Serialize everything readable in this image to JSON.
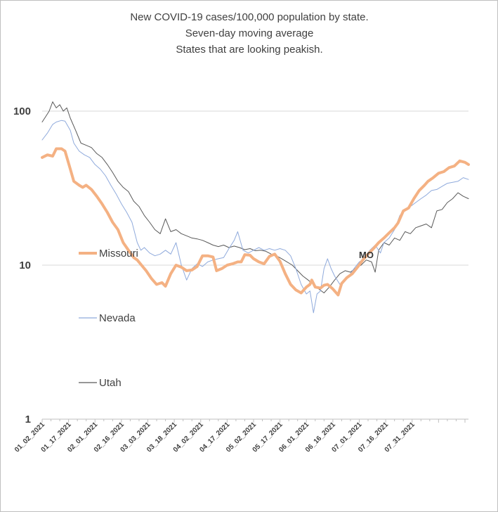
{
  "chart_data": {
    "type": "line",
    "title_lines": [
      "New COVID-19 cases/100,000 population by state.",
      "Seven-day moving average",
      "States that are looking peakish."
    ],
    "y_scale": "log",
    "ylim": [
      1,
      100
    ],
    "y_ticks": [
      "1",
      "10",
      "100"
    ],
    "grid": true,
    "x_tick_labels": [
      "01_02_2021",
      "01_17_2021",
      "02_01_2021",
      "02_16_2021",
      "03_03_2021",
      "03_18_2021",
      "04_02_2021",
      "04_17_2021",
      "05_02_2021",
      "05_17_2021",
      "06_01_2021",
      "06_16_2021",
      "07_01_2021",
      "07_16_2021",
      "07_31_2021"
    ],
    "x_start": "2021-01-02",
    "x_end": "2021-08-11",
    "annotation": "MO",
    "legend_position": "left-inside",
    "series": [
      {
        "name": "Missouri",
        "color": "#f4b183",
        "stroke": 4,
        "points": [
          [
            "2021-01-02",
            50
          ],
          [
            "2021-01-05",
            52
          ],
          [
            "2021-01-08",
            51
          ],
          [
            "2021-01-10",
            57
          ],
          [
            "2021-01-13",
            57
          ],
          [
            "2021-01-15",
            55
          ],
          [
            "2021-01-18",
            42
          ],
          [
            "2021-01-20",
            35
          ],
          [
            "2021-01-23",
            33
          ],
          [
            "2021-01-25",
            32
          ],
          [
            "2021-01-27",
            33
          ],
          [
            "2021-01-30",
            31
          ],
          [
            "2021-02-02",
            28
          ],
          [
            "2021-02-05",
            25
          ],
          [
            "2021-02-08",
            22
          ],
          [
            "2021-02-11",
            19
          ],
          [
            "2021-02-14",
            17
          ],
          [
            "2021-02-17",
            14
          ],
          [
            "2021-02-20",
            12.5
          ],
          [
            "2021-02-23",
            11.2
          ],
          [
            "2021-02-25",
            10.8
          ],
          [
            "2021-02-28",
            9.8
          ],
          [
            "2021-03-02",
            9.2
          ],
          [
            "2021-03-05",
            8.2
          ],
          [
            "2021-03-08",
            7.5
          ],
          [
            "2021-03-11",
            7.7
          ],
          [
            "2021-03-13",
            7.3
          ],
          [
            "2021-03-16",
            8.8
          ],
          [
            "2021-03-19",
            10.0
          ],
          [
            "2021-03-22",
            9.7
          ],
          [
            "2021-03-25",
            9.2
          ],
          [
            "2021-03-28",
            9.3
          ],
          [
            "2021-03-31",
            9.8
          ],
          [
            "2021-04-03",
            11.5
          ],
          [
            "2021-04-06",
            11.5
          ],
          [
            "2021-04-09",
            11.3
          ],
          [
            "2021-04-11",
            9.2
          ],
          [
            "2021-04-14",
            9.5
          ],
          [
            "2021-04-17",
            10.0
          ],
          [
            "2021-04-20",
            10.2
          ],
          [
            "2021-04-23",
            10.5
          ],
          [
            "2021-04-25",
            10.5
          ],
          [
            "2021-04-27",
            11.7
          ],
          [
            "2021-04-30",
            11.6
          ],
          [
            "2021-05-02",
            11.0
          ],
          [
            "2021-05-05",
            10.5
          ],
          [
            "2021-05-08",
            10.2
          ],
          [
            "2021-05-11",
            11.4
          ],
          [
            "2021-05-14",
            11.8
          ],
          [
            "2021-05-17",
            10.6
          ],
          [
            "2021-05-20",
            8.8
          ],
          [
            "2021-05-23",
            7.5
          ],
          [
            "2021-05-26",
            6.9
          ],
          [
            "2021-05-29",
            6.6
          ],
          [
            "2021-06-01",
            7.2
          ],
          [
            "2021-06-03",
            7.5
          ],
          [
            "2021-06-04",
            8.0
          ],
          [
            "2021-06-06",
            7.2
          ],
          [
            "2021-06-09",
            7.1
          ],
          [
            "2021-06-11",
            7.4
          ],
          [
            "2021-06-13",
            7.5
          ],
          [
            "2021-06-16",
            7.0
          ],
          [
            "2021-06-19",
            6.4
          ],
          [
            "2021-06-21",
            7.6
          ],
          [
            "2021-06-24",
            8.3
          ],
          [
            "2021-06-27",
            8.8
          ],
          [
            "2021-06-30",
            9.7
          ],
          [
            "2021-07-03",
            10.8
          ],
          [
            "2021-07-06",
            11.8
          ],
          [
            "2021-07-09",
            12.8
          ],
          [
            "2021-07-12",
            14.0
          ],
          [
            "2021-07-15",
            15.0
          ],
          [
            "2021-07-18",
            16.2
          ],
          [
            "2021-07-21",
            17.5
          ],
          [
            "2021-07-23",
            18.8
          ],
          [
            "2021-07-26",
            22.5
          ],
          [
            "2021-07-29",
            23.5
          ],
          [
            "2021-08-01",
            27.0
          ],
          [
            "2021-08-04",
            30.5
          ],
          [
            "2021-08-07",
            33.0
          ],
          [
            "2021-08-09",
            35.0
          ],
          [
            "2021-08-12",
            37.0
          ],
          [
            "2021-08-15",
            39.5
          ],
          [
            "2021-08-18",
            40.5
          ],
          [
            "2021-08-21",
            43.0
          ],
          [
            "2021-08-24",
            44.0
          ],
          [
            "2021-08-27",
            47.5
          ],
          [
            "2021-08-30",
            46.5
          ],
          [
            "2021-09-01",
            45.0
          ]
        ]
      },
      {
        "name": "Nevada",
        "color": "#8faadc",
        "stroke": 1,
        "points": [
          [
            "2021-01-02",
            65
          ],
          [
            "2021-01-05",
            72
          ],
          [
            "2021-01-08",
            82
          ],
          [
            "2021-01-10",
            85
          ],
          [
            "2021-01-13",
            87
          ],
          [
            "2021-01-15",
            86
          ],
          [
            "2021-01-18",
            75
          ],
          [
            "2021-01-20",
            62
          ],
          [
            "2021-01-23",
            55
          ],
          [
            "2021-01-26",
            52
          ],
          [
            "2021-01-29",
            50
          ],
          [
            "2021-02-01",
            45
          ],
          [
            "2021-02-04",
            42
          ],
          [
            "2021-02-07",
            38
          ],
          [
            "2021-02-10",
            33
          ],
          [
            "2021-02-13",
            29
          ],
          [
            "2021-02-16",
            25
          ],
          [
            "2021-02-19",
            22
          ],
          [
            "2021-02-22",
            19
          ],
          [
            "2021-02-25",
            14
          ],
          [
            "2021-02-27",
            12.5
          ],
          [
            "2021-03-01",
            13.0
          ],
          [
            "2021-03-04",
            12.0
          ],
          [
            "2021-03-07",
            11.5
          ],
          [
            "2021-03-10",
            11.8
          ],
          [
            "2021-03-13",
            12.5
          ],
          [
            "2021-03-16",
            11.8
          ],
          [
            "2021-03-19",
            14.0
          ],
          [
            "2021-03-22",
            10.0
          ],
          [
            "2021-03-25",
            8.0
          ],
          [
            "2021-03-28",
            9.5
          ],
          [
            "2021-03-31",
            10.2
          ],
          [
            "2021-04-03",
            9.8
          ],
          [
            "2021-04-06",
            10.5
          ],
          [
            "2021-04-09",
            10.8
          ],
          [
            "2021-04-12",
            11.0
          ],
          [
            "2021-04-15",
            11.2
          ],
          [
            "2021-04-18",
            12.8
          ],
          [
            "2021-04-21",
            14.5
          ],
          [
            "2021-04-23",
            16.5
          ],
          [
            "2021-04-26",
            12.5
          ],
          [
            "2021-04-29",
            12.0
          ],
          [
            "2021-05-02",
            12.5
          ],
          [
            "2021-05-05",
            13.0
          ],
          [
            "2021-05-08",
            12.5
          ],
          [
            "2021-05-11",
            12.8
          ],
          [
            "2021-05-14",
            12.5
          ],
          [
            "2021-05-17",
            12.8
          ],
          [
            "2021-05-20",
            12.5
          ],
          [
            "2021-05-23",
            11.5
          ],
          [
            "2021-05-26",
            9.5
          ],
          [
            "2021-05-29",
            7.5
          ],
          [
            "2021-06-01",
            6.5
          ],
          [
            "2021-06-03",
            6.8
          ],
          [
            "2021-06-05",
            4.9
          ],
          [
            "2021-06-07",
            6.5
          ],
          [
            "2021-06-09",
            6.8
          ],
          [
            "2021-06-11",
            9.5
          ],
          [
            "2021-06-13",
            11.0
          ],
          [
            "2021-06-15",
            9.5
          ],
          [
            "2021-06-17",
            8.5
          ],
          [
            "2021-06-20",
            7.5
          ],
          [
            "2021-06-22",
            7.8
          ],
          [
            "2021-06-25",
            8.5
          ],
          [
            "2021-06-28",
            9.5
          ],
          [
            "2021-07-01",
            10.5
          ],
          [
            "2021-07-04",
            11.0
          ],
          [
            "2021-07-07",
            12.5
          ],
          [
            "2021-07-10",
            13.5
          ],
          [
            "2021-07-13",
            12.0
          ],
          [
            "2021-07-15",
            14.0
          ],
          [
            "2021-07-18",
            15.0
          ],
          [
            "2021-07-21",
            17.0
          ],
          [
            "2021-07-24",
            21.0
          ],
          [
            "2021-07-27",
            23.0
          ],
          [
            "2021-07-30",
            24.0
          ],
          [
            "2021-08-02",
            25.5
          ],
          [
            "2021-08-05",
            27.0
          ],
          [
            "2021-08-08",
            28.5
          ],
          [
            "2021-08-11",
            30.5
          ],
          [
            "2021-08-14",
            31.0
          ],
          [
            "2021-08-17",
            32.5
          ],
          [
            "2021-08-20",
            34.0
          ],
          [
            "2021-08-23",
            34.5
          ],
          [
            "2021-08-26",
            35.0
          ],
          [
            "2021-08-29",
            37.0
          ],
          [
            "2021-09-01",
            36.0
          ]
        ]
      },
      {
        "name": "Utah",
        "color": "#595959",
        "stroke": 1,
        "points": [
          [
            "2021-01-02",
            85
          ],
          [
            "2021-01-04",
            92
          ],
          [
            "2021-01-06",
            100
          ],
          [
            "2021-01-08",
            115
          ],
          [
            "2021-01-10",
            105
          ],
          [
            "2021-01-12",
            110
          ],
          [
            "2021-01-14",
            100
          ],
          [
            "2021-01-16",
            105
          ],
          [
            "2021-01-18",
            90
          ],
          [
            "2021-01-21",
            75
          ],
          [
            "2021-01-24",
            62
          ],
          [
            "2021-01-27",
            60
          ],
          [
            "2021-01-30",
            58
          ],
          [
            "2021-02-02",
            53
          ],
          [
            "2021-02-05",
            50
          ],
          [
            "2021-02-08",
            45
          ],
          [
            "2021-02-11",
            40
          ],
          [
            "2021-02-14",
            35
          ],
          [
            "2021-02-17",
            32
          ],
          [
            "2021-02-20",
            30
          ],
          [
            "2021-02-23",
            26
          ],
          [
            "2021-02-26",
            24
          ],
          [
            "2021-03-01",
            21
          ],
          [
            "2021-03-04",
            19
          ],
          [
            "2021-03-07",
            17
          ],
          [
            "2021-03-10",
            16
          ],
          [
            "2021-03-13",
            20
          ],
          [
            "2021-03-16",
            16.5
          ],
          [
            "2021-03-19",
            17
          ],
          [
            "2021-03-22",
            16
          ],
          [
            "2021-03-25",
            15.5
          ],
          [
            "2021-03-28",
            15
          ],
          [
            "2021-03-31",
            14.8
          ],
          [
            "2021-04-03",
            14.5
          ],
          [
            "2021-04-06",
            14.0
          ],
          [
            "2021-04-09",
            13.5
          ],
          [
            "2021-04-12",
            13.2
          ],
          [
            "2021-04-15",
            13.5
          ],
          [
            "2021-04-18",
            13.0
          ],
          [
            "2021-04-21",
            13.3
          ],
          [
            "2021-04-24",
            13.0
          ],
          [
            "2021-04-27",
            12.6
          ],
          [
            "2021-04-30",
            12.8
          ],
          [
            "2021-05-03",
            12.4
          ],
          [
            "2021-05-06",
            12.5
          ],
          [
            "2021-05-09",
            12.3
          ],
          [
            "2021-05-12",
            11.8
          ],
          [
            "2021-05-15",
            11.5
          ],
          [
            "2021-05-18",
            11.0
          ],
          [
            "2021-05-21",
            10.5
          ],
          [
            "2021-05-24",
            10.0
          ],
          [
            "2021-05-27",
            9.2
          ],
          [
            "2021-05-30",
            8.5
          ],
          [
            "2021-06-02",
            8.0
          ],
          [
            "2021-06-05",
            7.5
          ],
          [
            "2021-06-08",
            7.0
          ],
          [
            "2021-06-11",
            6.6
          ],
          [
            "2021-06-14",
            7.2
          ],
          [
            "2021-06-17",
            8.0
          ],
          [
            "2021-06-20",
            8.8
          ],
          [
            "2021-06-23",
            9.2
          ],
          [
            "2021-06-26",
            9.0
          ],
          [
            "2021-06-29",
            9.6
          ],
          [
            "2021-07-02",
            10.0
          ],
          [
            "2021-07-05",
            10.8
          ],
          [
            "2021-07-08",
            10.5
          ],
          [
            "2021-07-10",
            9.0
          ],
          [
            "2021-07-12",
            12.5
          ],
          [
            "2021-07-15",
            14.0
          ],
          [
            "2021-07-18",
            13.5
          ],
          [
            "2021-07-21",
            15.0
          ],
          [
            "2021-07-24",
            14.5
          ],
          [
            "2021-07-27",
            16.5
          ],
          [
            "2021-07-30",
            16.0
          ],
          [
            "2021-08-02",
            17.5
          ],
          [
            "2021-08-05",
            18.0
          ],
          [
            "2021-08-08",
            18.5
          ],
          [
            "2021-08-11",
            17.5
          ],
          [
            "2021-08-14",
            22.5
          ],
          [
            "2021-08-17",
            23.0
          ],
          [
            "2021-08-20",
            25.5
          ],
          [
            "2021-08-23",
            27.0
          ],
          [
            "2021-08-26",
            29.5
          ],
          [
            "2021-08-29",
            28.0
          ],
          [
            "2021-09-01",
            27.0
          ]
        ]
      }
    ]
  }
}
